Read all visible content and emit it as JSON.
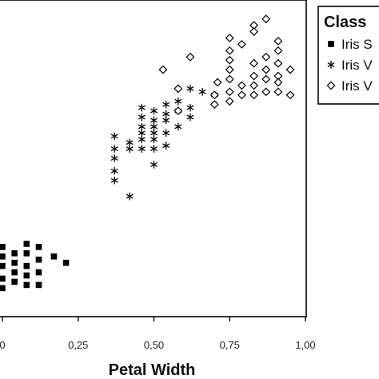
{
  "chart_data": {
    "type": "scatter",
    "xlabel": "Petal Width",
    "ylabel": "",
    "xlim": [
      0.0,
      1.0
    ],
    "ylim": [
      0.0,
      1.0
    ],
    "x_ticks": [
      0.0,
      0.25,
      0.5,
      0.75,
      1.0
    ],
    "x_tick_labels": [
      "0",
      "0,25",
      "0,50",
      "0,75",
      "1,00"
    ],
    "grid": false,
    "legend": {
      "title": "Class",
      "position": "right",
      "entries": [
        {
          "label": "Iris S",
          "marker": "square"
        },
        {
          "label": "Iris V",
          "marker": "asterisk"
        },
        {
          "label": "Iris V",
          "marker": "diamond"
        }
      ]
    },
    "series": [
      {
        "marker": "square",
        "color": "#000000",
        "points": [
          [
            0.0,
            0.22
          ],
          [
            0.0,
            0.19
          ],
          [
            0.0,
            0.16
          ],
          [
            0.0,
            0.12
          ],
          [
            0.0,
            0.09
          ],
          [
            0.04,
            0.2
          ],
          [
            0.04,
            0.17
          ],
          [
            0.04,
            0.14
          ],
          [
            0.04,
            0.11
          ],
          [
            0.08,
            0.23
          ],
          [
            0.08,
            0.2
          ],
          [
            0.08,
            0.16
          ],
          [
            0.08,
            0.13
          ],
          [
            0.08,
            0.1
          ],
          [
            0.12,
            0.22
          ],
          [
            0.12,
            0.18
          ],
          [
            0.12,
            0.14
          ],
          [
            0.12,
            0.1
          ],
          [
            0.17,
            0.19
          ],
          [
            0.21,
            0.17
          ]
        ]
      },
      {
        "marker": "asterisk",
        "color": "#000000",
        "points": [
          [
            0.37,
            0.57
          ],
          [
            0.37,
            0.53
          ],
          [
            0.37,
            0.5
          ],
          [
            0.37,
            0.46
          ],
          [
            0.37,
            0.43
          ],
          [
            0.42,
            0.55
          ],
          [
            0.42,
            0.53
          ],
          [
            0.42,
            0.38
          ],
          [
            0.46,
            0.66
          ],
          [
            0.46,
            0.63
          ],
          [
            0.46,
            0.6
          ],
          [
            0.46,
            0.58
          ],
          [
            0.46,
            0.56
          ],
          [
            0.46,
            0.53
          ],
          [
            0.5,
            0.65
          ],
          [
            0.5,
            0.62
          ],
          [
            0.5,
            0.6
          ],
          [
            0.5,
            0.58
          ],
          [
            0.5,
            0.56
          ],
          [
            0.5,
            0.53
          ],
          [
            0.5,
            0.48
          ],
          [
            0.54,
            0.67
          ],
          [
            0.54,
            0.64
          ],
          [
            0.54,
            0.62
          ],
          [
            0.54,
            0.58
          ],
          [
            0.54,
            0.54
          ],
          [
            0.58,
            0.68
          ],
          [
            0.58,
            0.65
          ],
          [
            0.58,
            0.6
          ],
          [
            0.62,
            0.72
          ],
          [
            0.62,
            0.66
          ],
          [
            0.62,
            0.63
          ],
          [
            0.66,
            0.71
          ],
          [
            0.7,
            0.7
          ]
        ]
      },
      {
        "marker": "diamond",
        "color": "#000000",
        "points": [
          [
            0.53,
            0.78
          ],
          [
            0.58,
            0.72
          ],
          [
            0.58,
            0.65
          ],
          [
            0.62,
            0.82
          ],
          [
            0.7,
            0.7
          ],
          [
            0.7,
            0.67
          ],
          [
            0.71,
            0.74
          ],
          [
            0.75,
            0.88
          ],
          [
            0.75,
            0.84
          ],
          [
            0.75,
            0.81
          ],
          [
            0.75,
            0.78
          ],
          [
            0.75,
            0.75
          ],
          [
            0.75,
            0.71
          ],
          [
            0.75,
            0.68
          ],
          [
            0.79,
            0.86
          ],
          [
            0.79,
            0.73
          ],
          [
            0.79,
            0.7
          ],
          [
            0.83,
            0.92
          ],
          [
            0.83,
            0.9
          ],
          [
            0.83,
            0.8
          ],
          [
            0.83,
            0.76
          ],
          [
            0.83,
            0.73
          ],
          [
            0.83,
            0.7
          ],
          [
            0.87,
            0.94
          ],
          [
            0.87,
            0.82
          ],
          [
            0.87,
            0.78
          ],
          [
            0.87,
            0.75
          ],
          [
            0.87,
            0.71
          ],
          [
            0.91,
            0.87
          ],
          [
            0.91,
            0.84
          ],
          [
            0.91,
            0.8
          ],
          [
            0.91,
            0.76
          ],
          [
            0.91,
            0.74
          ],
          [
            0.91,
            0.71
          ],
          [
            0.95,
            0.78
          ],
          [
            0.95,
            0.7
          ]
        ]
      }
    ]
  }
}
